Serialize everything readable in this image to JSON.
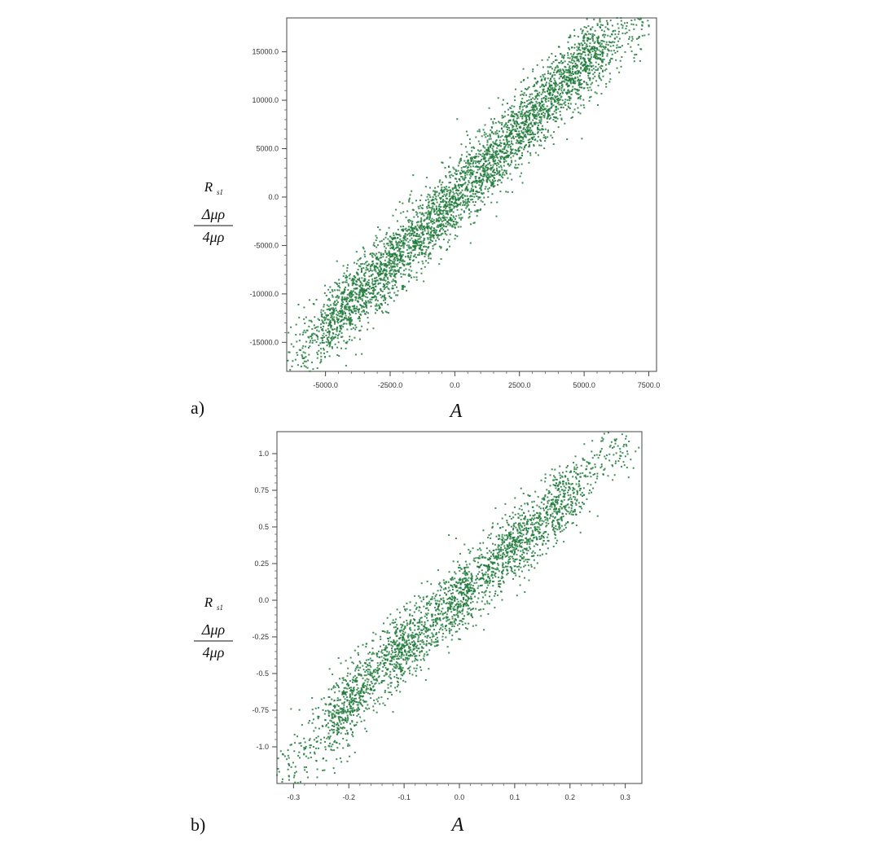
{
  "chart_data": [
    {
      "type": "scatter",
      "panel_label": "a)",
      "xlabel": "A",
      "ylabel": {
        "top": "R",
        "sub": "s1",
        "numerator": "Δμρ",
        "denominator": "4μρ"
      },
      "xlim": [
        -6500,
        7800
      ],
      "ylim": [
        -18000,
        18500
      ],
      "xticks": [
        -5000,
        -2500,
        0,
        2500,
        5000,
        7500
      ],
      "xtick_labels": [
        "-5000.0",
        "-2500.0",
        "0.0",
        "2500.0",
        "5000.0",
        "7500.0"
      ],
      "yticks": [
        15000,
        10000,
        5000,
        0,
        -5000,
        -10000,
        -15000
      ],
      "ytick_labels": [
        "15000.0",
        "10000.0",
        "5000.0",
        "0.0",
        "-5000.0",
        "-10000.0",
        "-15000.0"
      ],
      "color": "#1e7a3a",
      "points": [
        [
          -6000,
          -16500
        ],
        [
          -5600,
          -15500
        ],
        [
          -5200,
          -14200
        ],
        [
          -4800,
          -13000
        ],
        [
          -4400,
          -12000
        ],
        [
          -4000,
          -10800
        ],
        [
          -3600,
          -10000
        ],
        [
          -3200,
          -8800
        ],
        [
          -2800,
          -7600
        ],
        [
          -2400,
          -6800
        ],
        [
          -2000,
          -5600
        ],
        [
          -1600,
          -4600
        ],
        [
          -1200,
          -3400
        ],
        [
          -800,
          -2400
        ],
        [
          -400,
          -1200
        ],
        [
          0,
          0
        ],
        [
          400,
          1000
        ],
        [
          800,
          2200
        ],
        [
          1200,
          3300
        ],
        [
          1600,
          4500
        ],
        [
          2000,
          5500
        ],
        [
          2400,
          6600
        ],
        [
          2800,
          7800
        ],
        [
          3200,
          8800
        ],
        [
          3600,
          10000
        ],
        [
          4000,
          11000
        ],
        [
          4400,
          12200
        ],
        [
          4800,
          13200
        ],
        [
          5200,
          14500
        ],
        [
          5600,
          15500
        ],
        [
          6000,
          16600
        ],
        [
          6600,
          17600
        ],
        [
          7100,
          17800
        ]
      ],
      "spread_note_hidden": true
    },
    {
      "type": "scatter",
      "panel_label": "b)",
      "xlabel": "A",
      "ylabel": {
        "top": "R",
        "sub": "s1",
        "numerator": "Δμρ",
        "denominator": "4μρ"
      },
      "xlim": [
        -0.33,
        0.33
      ],
      "ylim": [
        -1.25,
        1.15
      ],
      "xticks": [
        -0.3,
        -0.2,
        -0.1,
        0.0,
        0.1,
        0.2,
        0.3
      ],
      "xtick_labels": [
        "-0.3",
        "-0.2",
        "-0.1",
        "0.0",
        "0.1",
        "0.2",
        "0.3"
      ],
      "yticks": [
        1.0,
        0.75,
        0.5,
        0.25,
        0.0,
        -0.25,
        -0.5,
        -0.75,
        -1.0
      ],
      "ytick_labels": [
        "1.0",
        "0.75",
        "0.5",
        "0.25",
        "0.0",
        "-0.25",
        "-0.5",
        "-0.75",
        "-1.0"
      ],
      "color": "#1e7a3a",
      "points": [
        [
          -0.31,
          -1.15
        ],
        [
          -0.28,
          -1.05
        ],
        [
          -0.25,
          -0.95
        ],
        [
          -0.22,
          -0.82
        ],
        [
          -0.2,
          -0.7
        ],
        [
          -0.18,
          -0.6
        ],
        [
          -0.15,
          -0.5
        ],
        [
          -0.12,
          -0.4
        ],
        [
          -0.1,
          -0.32
        ],
        [
          -0.08,
          -0.25
        ],
        [
          -0.05,
          -0.15
        ],
        [
          -0.02,
          -0.05
        ],
        [
          0.0,
          0.02
        ],
        [
          0.02,
          0.1
        ],
        [
          0.05,
          0.2
        ],
        [
          0.08,
          0.3
        ],
        [
          0.1,
          0.38
        ],
        [
          0.12,
          0.45
        ],
        [
          0.15,
          0.55
        ],
        [
          0.18,
          0.65
        ],
        [
          0.2,
          0.72
        ],
        [
          0.23,
          0.85
        ],
        [
          0.26,
          0.95
        ],
        [
          0.29,
          1.05
        ]
      ]
    }
  ]
}
